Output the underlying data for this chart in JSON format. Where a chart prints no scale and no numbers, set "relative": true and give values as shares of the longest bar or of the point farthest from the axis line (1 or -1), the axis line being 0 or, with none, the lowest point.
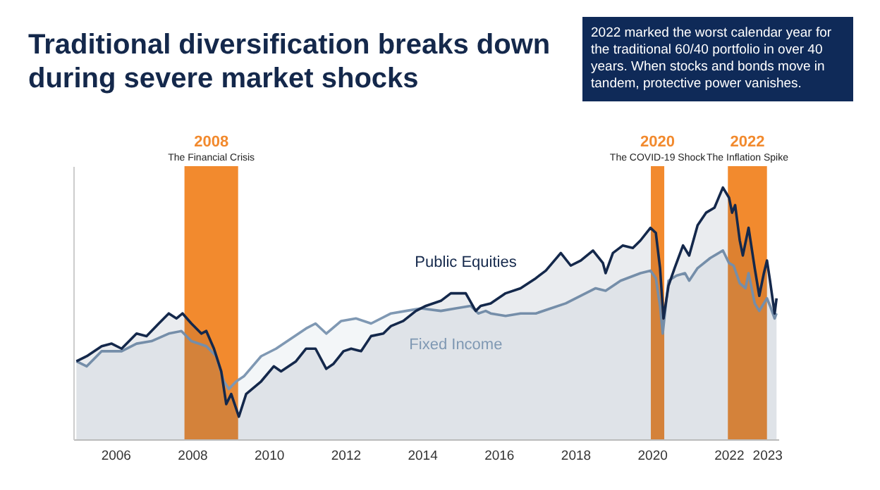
{
  "chart_data": {
    "type": "area",
    "title": "Traditional diversification breaks down during severe market shocks",
    "relative": true,
    "legend": false,
    "grid": false,
    "xlim": [
      2004.9,
      2023.3
    ],
    "xticks": [
      2006,
      2008,
      2010,
      2012,
      2014,
      2016,
      2018,
      2020,
      2022,
      2023
    ],
    "bands": [
      {
        "axis": "x",
        "from": 2007.8,
        "to": 2009.2,
        "label": "2008\nThe Financial Crisis",
        "color": "#f28a2e"
      },
      {
        "axis": "x",
        "from": 2019.97,
        "to": 2020.32,
        "label": "2020\nThe COVID-19 Shock",
        "color": "#f28a2e"
      },
      {
        "axis": "x",
        "from": 2021.98,
        "to": 2023.0,
        "label": "2022\nThe Inflation Spike",
        "color": "#f28a2e"
      }
    ],
    "annotations": [
      "2022 marked the worst calendar year for the traditional 60/40 portfolio in over 40 years. When stocks and bonds move in tandem, protective power vanishes."
    ],
    "series": [
      {
        "name": "Public Equities",
        "color": "#14284b",
        "x": [
          2004.98,
          2005.25,
          2005.64,
          2005.9,
          2006.16,
          2006.55,
          2006.81,
          2007.13,
          2007.39,
          2007.59,
          2007.75,
          2007.98,
          2008.24,
          2008.37,
          2008.57,
          2008.76,
          2008.89,
          2009.02,
          2009.22,
          2009.41,
          2009.8,
          2010.13,
          2010.32,
          2010.71,
          2010.97,
          2011.22,
          2011.5,
          2011.69,
          2011.95,
          2012.15,
          2012.41,
          2012.67,
          2012.99,
          2013.19,
          2013.51,
          2013.84,
          2014.1,
          2014.49,
          2014.75,
          2015.14,
          2015.4,
          2015.53,
          2015.79,
          2016.18,
          2016.57,
          2016.97,
          2017.23,
          2017.62,
          2017.88,
          2018.14,
          2018.46,
          2018.72,
          2018.79,
          2018.98,
          2019.24,
          2019.5,
          2019.7,
          2019.96,
          2020.1,
          2020.21,
          2020.3,
          2020.43,
          2020.59,
          2020.81,
          2020.97,
          2021.19,
          2021.41,
          2021.63,
          2021.85,
          2022.01,
          2022.09,
          2022.17,
          2022.29,
          2022.37,
          2022.52,
          2022.68,
          2022.8,
          2022.92,
          2023.0,
          2023.08,
          2023.2,
          2023.25
        ],
        "values": [
          0.31,
          0.33,
          0.37,
          0.38,
          0.36,
          0.42,
          0.41,
          0.46,
          0.5,
          0.48,
          0.5,
          0.46,
          0.42,
          0.43,
          0.36,
          0.27,
          0.14,
          0.18,
          0.09,
          0.18,
          0.23,
          0.29,
          0.27,
          0.31,
          0.36,
          0.36,
          0.28,
          0.3,
          0.35,
          0.36,
          0.35,
          0.41,
          0.42,
          0.45,
          0.47,
          0.51,
          0.53,
          0.55,
          0.58,
          0.58,
          0.51,
          0.53,
          0.54,
          0.58,
          0.6,
          0.64,
          0.67,
          0.74,
          0.69,
          0.71,
          0.75,
          0.7,
          0.66,
          0.74,
          0.77,
          0.76,
          0.79,
          0.84,
          0.82,
          0.68,
          0.48,
          0.61,
          0.68,
          0.77,
          0.73,
          0.85,
          0.9,
          0.92,
          1.0,
          0.96,
          0.9,
          0.93,
          0.79,
          0.73,
          0.84,
          0.68,
          0.57,
          0.66,
          0.71,
          0.63,
          0.5,
          0.56
        ]
      },
      {
        "name": "Fixed Income",
        "color": "#7f98b3",
        "x": [
          2004.98,
          2005.25,
          2005.64,
          2006.16,
          2006.55,
          2006.94,
          2007.39,
          2007.72,
          2007.98,
          2008.37,
          2008.63,
          2008.83,
          2008.96,
          2009.15,
          2009.35,
          2009.8,
          2010.19,
          2010.58,
          2010.97,
          2011.22,
          2011.5,
          2011.89,
          2012.28,
          2012.67,
          2013.19,
          2013.58,
          2013.97,
          2014.49,
          2014.88,
          2015.27,
          2015.47,
          2015.66,
          2015.79,
          2016.18,
          2016.57,
          2016.97,
          2017.36,
          2017.75,
          2018.14,
          2018.53,
          2018.79,
          2019.18,
          2019.7,
          2019.96,
          2020.1,
          2020.21,
          2020.28,
          2020.43,
          2020.64,
          2020.86,
          2020.97,
          2021.19,
          2021.52,
          2021.85,
          2022.01,
          2022.13,
          2022.29,
          2022.44,
          2022.52,
          2022.68,
          2022.8,
          2022.92,
          2023.0,
          2023.08,
          2023.2,
          2023.25
        ],
        "values": [
          0.31,
          0.29,
          0.35,
          0.35,
          0.38,
          0.39,
          0.42,
          0.43,
          0.39,
          0.37,
          0.33,
          0.23,
          0.2,
          0.23,
          0.25,
          0.33,
          0.36,
          0.4,
          0.44,
          0.46,
          0.42,
          0.47,
          0.48,
          0.46,
          0.5,
          0.51,
          0.52,
          0.51,
          0.52,
          0.53,
          0.5,
          0.51,
          0.5,
          0.49,
          0.5,
          0.5,
          0.52,
          0.54,
          0.57,
          0.6,
          0.59,
          0.63,
          0.66,
          0.67,
          0.64,
          0.53,
          0.42,
          0.63,
          0.65,
          0.66,
          0.63,
          0.68,
          0.72,
          0.75,
          0.7,
          0.69,
          0.62,
          0.6,
          0.66,
          0.54,
          0.51,
          0.54,
          0.56,
          0.53,
          0.48,
          0.5
        ]
      }
    ]
  }
}
